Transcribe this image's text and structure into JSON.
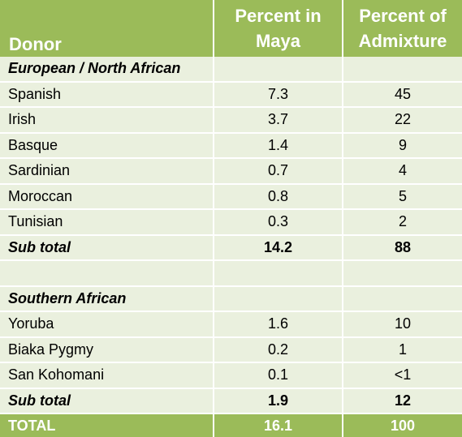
{
  "header": {
    "donor": "Donor",
    "col2_line1": "Percent in",
    "col2_line2": "Maya",
    "col3_line1": "Percent of",
    "col3_line2": "Admixture"
  },
  "sections": [
    {
      "title": "European / North African",
      "rows": [
        {
          "donor": "Spanish",
          "maya": "7.3",
          "admix": "45"
        },
        {
          "donor": "Irish",
          "maya": "3.7",
          "admix": "22"
        },
        {
          "donor": "Basque",
          "maya": "1.4",
          "admix": "9"
        },
        {
          "donor": "Sardinian",
          "maya": "0.7",
          "admix": "4"
        },
        {
          "donor": "Moroccan",
          "maya": "0.8",
          "admix": "5"
        },
        {
          "donor": "Tunisian",
          "maya": "0.3",
          "admix": "2"
        }
      ],
      "subtotal": {
        "label": "Sub total",
        "maya": "14.2",
        "admix": "88"
      }
    },
    {
      "title": "Southern African",
      "rows": [
        {
          "donor": "Yoruba",
          "maya": "1.6",
          "admix": "10"
        },
        {
          "donor": "Biaka Pygmy",
          "maya": "0.2",
          "admix": "1"
        },
        {
          "donor": "San Kohomani",
          "maya": "0.1",
          "admix": "<1"
        }
      ],
      "subtotal": {
        "label": "Sub total",
        "maya": "1.9",
        "admix": "12"
      }
    }
  ],
  "total": {
    "label": "TOTAL",
    "maya": "16.1",
    "admix": "100"
  },
  "colors": {
    "header_bg": "#9bbb59",
    "body_bg": "#eaf0de"
  }
}
